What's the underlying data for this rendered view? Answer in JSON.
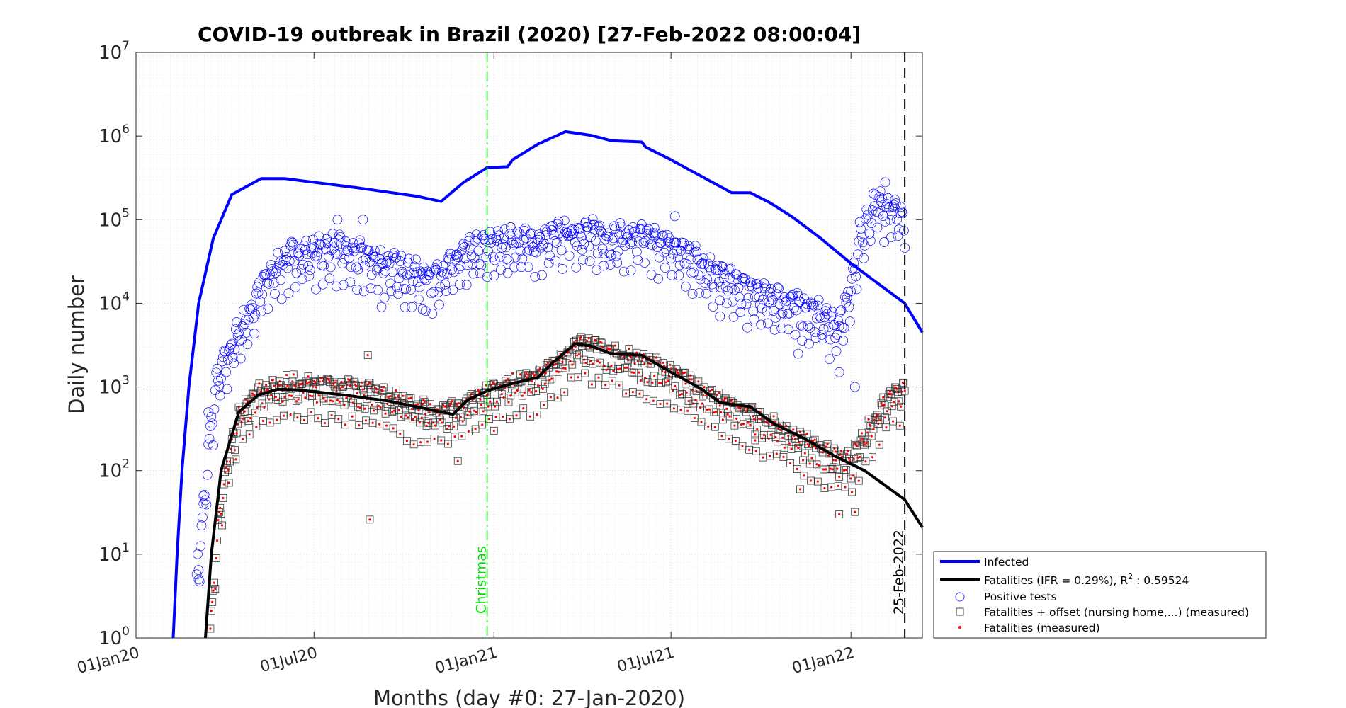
{
  "chart_data": {
    "type": "scatter",
    "title": "COVID-19 outbreak in Brazil (2020) [27-Feb-2022 08:00:04]",
    "xlabel": "Months (day #0: 27-Jan-2020)",
    "ylabel": "Daily number",
    "yscale": "log",
    "ylim": [
      1,
      10000000
    ],
    "xlim": [
      "2020-01-01",
      "2022-03-15"
    ],
    "grid": "on (major and minor, dotted)",
    "legend_position": "bottom-right, outside plot",
    "x_ticks": [
      "01Jan20",
      "01Jul20",
      "01Jan21",
      "01Jul21",
      "01Jan22"
    ],
    "y_ticks": [
      {
        "base": "10",
        "exp": "0"
      },
      {
        "base": "10",
        "exp": "1"
      },
      {
        "base": "10",
        "exp": "2"
      },
      {
        "base": "10",
        "exp": "3"
      },
      {
        "base": "10",
        "exp": "4"
      },
      {
        "base": "10",
        "exp": "5"
      },
      {
        "base": "10",
        "exp": "6"
      },
      {
        "base": "10",
        "exp": "7"
      }
    ],
    "annotations": [
      {
        "label": "Christmas",
        "date": "2020-12-25",
        "color": "#00e000",
        "style": "dash-dot"
      },
      {
        "label": "25-Feb-2022",
        "date": "2022-02-25",
        "color": "#000000",
        "style": "dashed"
      }
    ],
    "legend": [
      {
        "label": "Infected",
        "marker": "line",
        "color": "#0000ff"
      },
      {
        "label": "Fatalities (IFR = 0.29%), R",
        "sup": "2",
        "suffix": " : 0.59524",
        "marker": "line",
        "color": "#000000"
      },
      {
        "label": "Positive tests",
        "marker": "circle",
        "color": "#0000ff"
      },
      {
        "label": "Fatalities + offset (nursing home,...) (measured)",
        "marker": "square",
        "color": "#000000"
      },
      {
        "label": "Fatalities (measured)",
        "marker": "dot",
        "color": "#ff0000"
      }
    ],
    "series": [
      {
        "name": "Infected",
        "kind": "line",
        "color": "#0000ff",
        "points": [
          [
            "2020-02-08",
            1
          ],
          [
            "2020-02-12",
            10
          ],
          [
            "2020-02-17",
            100
          ],
          [
            "2020-02-24",
            1000
          ],
          [
            "2020-03-05",
            10000
          ],
          [
            "2020-03-20",
            60000
          ],
          [
            "2020-04-08",
            200000
          ],
          [
            "2020-05-08",
            310000
          ],
          [
            "2020-06-01",
            310000
          ],
          [
            "2020-07-01",
            280000
          ],
          [
            "2020-08-15",
            240000
          ],
          [
            "2020-10-15",
            190000
          ],
          [
            "2020-11-08",
            165000
          ],
          [
            "2020-11-14",
            190000
          ],
          [
            "2020-12-01",
            280000
          ],
          [
            "2020-12-25",
            420000
          ],
          [
            "2021-01-15",
            430000
          ],
          [
            "2021-01-20",
            520000
          ],
          [
            "2021-02-15",
            800000
          ],
          [
            "2021-03-15",
            1130000
          ],
          [
            "2021-04-10",
            1020000
          ],
          [
            "2021-05-01",
            880000
          ],
          [
            "2021-06-01",
            850000
          ],
          [
            "2021-06-05",
            740000
          ],
          [
            "2021-07-01",
            520000
          ],
          [
            "2021-08-01",
            330000
          ],
          [
            "2021-09-01",
            210000
          ],
          [
            "2021-09-20",
            210000
          ],
          [
            "2021-10-10",
            160000
          ],
          [
            "2021-11-01",
            110000
          ],
          [
            "2021-12-01",
            60000
          ],
          [
            "2022-01-01",
            30000
          ],
          [
            "2022-02-25",
            10000
          ],
          [
            "2022-03-15",
            4500
          ]
        ]
      },
      {
        "name": "Fatalities (IFR = 0.29%), R2 : 0.59524",
        "kind": "line",
        "color": "#000000",
        "points": [
          [
            "2020-03-12",
            1
          ],
          [
            "2020-03-18",
            10
          ],
          [
            "2020-03-28",
            100
          ],
          [
            "2020-04-15",
            500
          ],
          [
            "2020-05-05",
            800
          ],
          [
            "2020-05-25",
            940
          ],
          [
            "2020-06-15",
            920
          ],
          [
            "2020-08-01",
            800
          ],
          [
            "2020-09-15",
            680
          ],
          [
            "2020-10-20",
            560
          ],
          [
            "2020-11-20",
            470
          ],
          [
            "2020-12-05",
            700
          ],
          [
            "2020-12-25",
            900
          ],
          [
            "2021-01-20",
            1100
          ],
          [
            "2021-02-15",
            1300
          ],
          [
            "2021-03-01",
            1900
          ],
          [
            "2021-03-25",
            3300
          ],
          [
            "2021-04-10",
            3100
          ],
          [
            "2021-05-01",
            2500
          ],
          [
            "2021-06-01",
            2400
          ],
          [
            "2021-07-01",
            1500
          ],
          [
            "2021-08-01",
            950
          ],
          [
            "2021-08-20",
            650
          ],
          [
            "2021-09-20",
            580
          ],
          [
            "2021-10-15",
            360
          ],
          [
            "2021-11-15",
            240
          ],
          [
            "2021-12-15",
            150
          ],
          [
            "2022-01-15",
            100
          ],
          [
            "2022-02-25",
            45
          ],
          [
            "2022-03-15",
            21
          ]
        ]
      },
      {
        "name": "Positive tests",
        "kind": "circle",
        "color": "#0000ff",
        "trend": [
          [
            "2020-03-03",
            6
          ],
          [
            "2020-03-10",
            30
          ],
          [
            "2020-03-17",
            300
          ],
          [
            "2020-03-24",
            1200
          ],
          [
            "2020-04-01",
            2000
          ],
          [
            "2020-04-10",
            3500
          ],
          [
            "2020-04-25",
            7000
          ],
          [
            "2020-05-10",
            17000
          ],
          [
            "2020-05-25",
            28000
          ],
          [
            "2020-06-10",
            38000
          ],
          [
            "2020-07-01",
            40000
          ],
          [
            "2020-07-20",
            45000
          ],
          [
            "2020-08-10",
            38000
          ],
          [
            "2020-09-01",
            33000
          ],
          [
            "2020-10-01",
            24000
          ],
          [
            "2020-11-01",
            20000
          ],
          [
            "2020-11-20",
            30000
          ],
          [
            "2020-12-10",
            42000
          ],
          [
            "2021-01-01",
            50000
          ],
          [
            "2021-01-20",
            55000
          ],
          [
            "2021-02-15",
            52000
          ],
          [
            "2021-03-15",
            70000
          ],
          [
            "2021-04-01",
            70000
          ],
          [
            "2021-05-01",
            60000
          ],
          [
            "2021-06-01",
            62000
          ],
          [
            "2021-07-01",
            48000
          ],
          [
            "2021-08-01",
            30000
          ],
          [
            "2021-09-01",
            17000
          ],
          [
            "2021-10-01",
            12000
          ],
          [
            "2021-11-01",
            10000
          ],
          [
            "2021-12-01",
            7000
          ],
          [
            "2021-12-20",
            5000
          ],
          [
            "2022-01-01",
            15000
          ],
          [
            "2022-01-10",
            60000
          ],
          [
            "2022-01-25",
            150000
          ],
          [
            "2022-02-10",
            150000
          ],
          [
            "2022-02-25",
            100000
          ]
        ],
        "outliers": [
          [
            "2020-03-05",
            5
          ],
          [
            "2020-03-10",
            50
          ],
          [
            "2020-03-15",
            500
          ],
          [
            "2020-07-25",
            100000
          ],
          [
            "2020-08-20",
            100000
          ],
          [
            "2020-09-08",
            9000
          ],
          [
            "2020-10-20",
            8500
          ],
          [
            "2021-07-05",
            110000
          ],
          [
            "2021-08-20",
            7000
          ],
          [
            "2021-11-08",
            2500
          ],
          [
            "2021-12-20",
            1500
          ],
          [
            "2022-01-05",
            1000
          ],
          [
            "2022-02-05",
            280000
          ]
        ]
      },
      {
        "name": "Fatalities + offset (nursing home,...) (measured)",
        "kind": "square",
        "color": "#444444",
        "trend": [
          [
            "2020-03-17",
            1
          ],
          [
            "2020-03-22",
            8
          ],
          [
            "2020-03-28",
            40
          ],
          [
            "2020-04-05",
            150
          ],
          [
            "2020-04-15",
            400
          ],
          [
            "2020-05-01",
            750
          ],
          [
            "2020-05-20",
            950
          ],
          [
            "2020-06-15",
            1000
          ],
          [
            "2020-07-15",
            950
          ],
          [
            "2020-08-15",
            880
          ],
          [
            "2020-09-15",
            720
          ],
          [
            "2020-10-15",
            500
          ],
          [
            "2020-11-15",
            470
          ],
          [
            "2020-12-10",
            620
          ],
          [
            "2021-01-01",
            900
          ],
          [
            "2021-01-25",
            1050
          ],
          [
            "2021-02-20",
            1250
          ],
          [
            "2021-03-25",
            2900
          ],
          [
            "2021-04-15",
            2700
          ],
          [
            "2021-05-15",
            2100
          ],
          [
            "2021-06-15",
            1600
          ],
          [
            "2021-07-15",
            1100
          ],
          [
            "2021-08-15",
            650
          ],
          [
            "2021-09-15",
            450
          ],
          [
            "2021-10-15",
            320
          ],
          [
            "2021-11-15",
            200
          ],
          [
            "2021-12-15",
            130
          ],
          [
            "2022-01-01",
            120
          ],
          [
            "2022-01-20",
            300
          ],
          [
            "2022-02-10",
            800
          ],
          [
            "2022-02-25",
            900
          ]
        ],
        "outliers": [
          [
            "2020-08-25",
            2400
          ],
          [
            "2020-08-27",
            26
          ],
          [
            "2020-11-25",
            130
          ],
          [
            "2021-01-01",
            300
          ],
          [
            "2021-09-25",
            230
          ],
          [
            "2021-11-10",
            60
          ],
          [
            "2021-12-20",
            30
          ],
          [
            "2022-01-05",
            32
          ]
        ]
      }
    ]
  }
}
